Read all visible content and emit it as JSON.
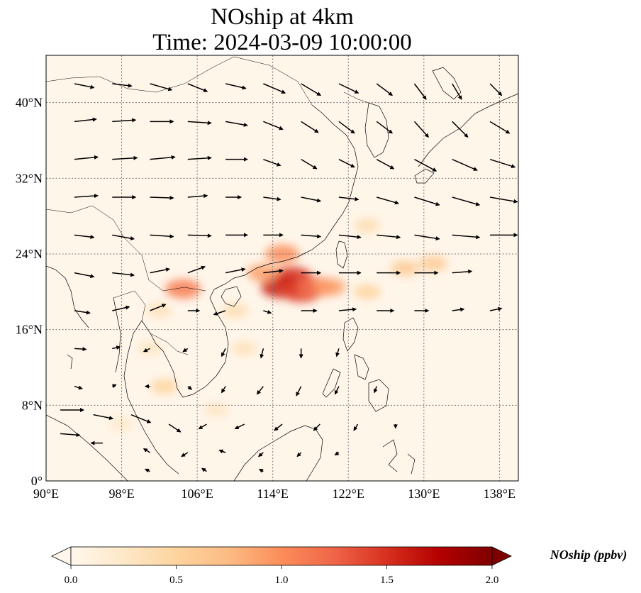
{
  "title": {
    "line1": "NOship at 4km",
    "line2": "Time: 2024-03-09 10:00:00"
  },
  "map": {
    "type": "heatmap",
    "variable": "NOship",
    "lon_range": [
      90,
      140
    ],
    "lat_range": [
      0,
      45
    ],
    "lon_ticks": [
      "90°E",
      "98°E",
      "106°E",
      "114°E",
      "122°E",
      "130°E",
      "138°E"
    ],
    "lon_tick_values": [
      90,
      98,
      106,
      114,
      122,
      130,
      138
    ],
    "lat_ticks": [
      "0°",
      "8°N",
      "16°N",
      "24°N",
      "32°N",
      "40°N"
    ],
    "lat_tick_values": [
      0,
      8,
      16,
      24,
      32,
      40
    ],
    "grid": true,
    "overlay": "wind-vectors",
    "colormap": "OrRd",
    "hotspots": [
      {
        "lon": 116.0,
        "lat": 21.5,
        "value": 1.5
      },
      {
        "lon": 115.0,
        "lat": 20.5,
        "value": 1.6
      },
      {
        "lon": 117.0,
        "lat": 20.0,
        "value": 1.4
      },
      {
        "lon": 118.5,
        "lat": 20.5,
        "value": 1.2
      },
      {
        "lon": 115.0,
        "lat": 24.0,
        "value": 1.0
      },
      {
        "lon": 104.5,
        "lat": 20.3,
        "value": 1.1
      },
      {
        "lon": 113.0,
        "lat": 22.0,
        "value": 0.9
      },
      {
        "lon": 120.0,
        "lat": 20.5,
        "value": 0.9
      },
      {
        "lon": 128.0,
        "lat": 22.5,
        "value": 0.6
      },
      {
        "lon": 131.0,
        "lat": 23.0,
        "value": 0.6
      },
      {
        "lon": 124.0,
        "lat": 20.0,
        "value": 0.5
      },
      {
        "lon": 124.0,
        "lat": 27.0,
        "value": 0.4
      },
      {
        "lon": 110.0,
        "lat": 18.0,
        "value": 0.4
      },
      {
        "lon": 102.0,
        "lat": 18.0,
        "value": 0.35
      },
      {
        "lon": 102.5,
        "lat": 10.0,
        "value": 0.5
      },
      {
        "lon": 111.0,
        "lat": 14.0,
        "value": 0.35
      },
      {
        "lon": 101.0,
        "lat": 14.0,
        "value": 0.3
      },
      {
        "lon": 98.0,
        "lat": 6.0,
        "value": 0.25
      },
      {
        "lon": 108.0,
        "lat": 7.5,
        "value": 0.3
      }
    ],
    "winds": [
      {
        "lon": 93,
        "lat": 42,
        "u": 2.5,
        "v": -0.5
      },
      {
        "lon": 97,
        "lat": 42,
        "u": 2.5,
        "v": -0.3
      },
      {
        "lon": 101,
        "lat": 42,
        "u": 2.8,
        "v": -0.8
      },
      {
        "lon": 105,
        "lat": 42,
        "u": 2.5,
        "v": -1.0
      },
      {
        "lon": 109,
        "lat": 42,
        "u": 2.6,
        "v": -0.6
      },
      {
        "lon": 113,
        "lat": 42,
        "u": 2.8,
        "v": -1.2
      },
      {
        "lon": 117,
        "lat": 42,
        "u": 2.5,
        "v": -1.5
      },
      {
        "lon": 121,
        "lat": 42,
        "u": 2.5,
        "v": -1.2
      },
      {
        "lon": 125,
        "lat": 42,
        "u": 2.0,
        "v": -1.5
      },
      {
        "lon": 129,
        "lat": 42,
        "u": 1.5,
        "v": -2.0
      },
      {
        "lon": 133,
        "lat": 42,
        "u": 1.2,
        "v": -2.0
      },
      {
        "lon": 137,
        "lat": 42,
        "u": 1.5,
        "v": -1.5
      },
      {
        "lon": 93,
        "lat": 38,
        "u": 2.8,
        "v": 0.3
      },
      {
        "lon": 97,
        "lat": 38,
        "u": 3.0,
        "v": 0.2
      },
      {
        "lon": 101,
        "lat": 38,
        "u": 3.0,
        "v": 0.0
      },
      {
        "lon": 105,
        "lat": 38,
        "u": 3.0,
        "v": -0.2
      },
      {
        "lon": 109,
        "lat": 38,
        "u": 2.8,
        "v": -0.5
      },
      {
        "lon": 113,
        "lat": 38,
        "u": 2.5,
        "v": -1.0
      },
      {
        "lon": 117,
        "lat": 38,
        "u": 2.2,
        "v": -1.4
      },
      {
        "lon": 121,
        "lat": 38,
        "u": 2.0,
        "v": -1.5
      },
      {
        "lon": 125,
        "lat": 38,
        "u": 2.0,
        "v": -1.5
      },
      {
        "lon": 129,
        "lat": 38,
        "u": 1.8,
        "v": -2.0
      },
      {
        "lon": 133,
        "lat": 38,
        "u": 2.0,
        "v": -2.0
      },
      {
        "lon": 137,
        "lat": 38,
        "u": 2.5,
        "v": -1.5
      },
      {
        "lon": 93,
        "lat": 34,
        "u": 3.0,
        "v": 0.3
      },
      {
        "lon": 97,
        "lat": 34,
        "u": 3.2,
        "v": 0.2
      },
      {
        "lon": 101,
        "lat": 34,
        "u": 3.2,
        "v": 0.3
      },
      {
        "lon": 105,
        "lat": 34,
        "u": 3.0,
        "v": 0.2
      },
      {
        "lon": 109,
        "lat": 34,
        "u": 2.8,
        "v": 0.0
      },
      {
        "lon": 113,
        "lat": 34,
        "u": 2.2,
        "v": -0.8
      },
      {
        "lon": 117,
        "lat": 34,
        "u": 2.0,
        "v": -1.2
      },
      {
        "lon": 121,
        "lat": 34,
        "u": 2.0,
        "v": -1.0
      },
      {
        "lon": 125,
        "lat": 34,
        "u": 2.2,
        "v": -1.2
      },
      {
        "lon": 129,
        "lat": 34,
        "u": 2.8,
        "v": -1.5
      },
      {
        "lon": 133,
        "lat": 34,
        "u": 3.2,
        "v": -1.4
      },
      {
        "lon": 137,
        "lat": 34,
        "u": 3.2,
        "v": -1.0
      },
      {
        "lon": 93,
        "lat": 30,
        "u": 3.0,
        "v": 0.2
      },
      {
        "lon": 97,
        "lat": 30,
        "u": 3.0,
        "v": 0.0
      },
      {
        "lon": 101,
        "lat": 30,
        "u": 3.0,
        "v": -0.1
      },
      {
        "lon": 105,
        "lat": 30,
        "u": 2.5,
        "v": 0.2
      },
      {
        "lon": 109,
        "lat": 30,
        "u": 2.0,
        "v": 0.0
      },
      {
        "lon": 113,
        "lat": 30,
        "u": 2.2,
        "v": -0.3
      },
      {
        "lon": 117,
        "lat": 30,
        "u": 2.5,
        "v": -0.5
      },
      {
        "lon": 121,
        "lat": 30,
        "u": 2.5,
        "v": -0.3
      },
      {
        "lon": 125,
        "lat": 30,
        "u": 2.8,
        "v": -0.8
      },
      {
        "lon": 129,
        "lat": 30,
        "u": 3.2,
        "v": -1.0
      },
      {
        "lon": 133,
        "lat": 30,
        "u": 3.5,
        "v": -1.0
      },
      {
        "lon": 137,
        "lat": 30,
        "u": 3.5,
        "v": -0.6
      },
      {
        "lon": 93,
        "lat": 26,
        "u": 2.5,
        "v": -0.3
      },
      {
        "lon": 97,
        "lat": 26,
        "u": 2.8,
        "v": -0.5
      },
      {
        "lon": 101,
        "lat": 26,
        "u": 3.0,
        "v": -0.2
      },
      {
        "lon": 105,
        "lat": 26,
        "u": 3.0,
        "v": -0.1
      },
      {
        "lon": 109,
        "lat": 26,
        "u": 2.8,
        "v": 0.0
      },
      {
        "lon": 113,
        "lat": 26,
        "u": 2.5,
        "v": 0.0
      },
      {
        "lon": 117,
        "lat": 26,
        "u": 2.5,
        "v": -0.2
      },
      {
        "lon": 121,
        "lat": 26,
        "u": 2.8,
        "v": -0.3
      },
      {
        "lon": 125,
        "lat": 26,
        "u": 3.0,
        "v": -0.3
      },
      {
        "lon": 129,
        "lat": 26,
        "u": 3.2,
        "v": -0.5
      },
      {
        "lon": 133,
        "lat": 26,
        "u": 3.5,
        "v": -0.3
      },
      {
        "lon": 137,
        "lat": 26,
        "u": 3.5,
        "v": 0.0
      },
      {
        "lon": 93,
        "lat": 22,
        "u": 2.5,
        "v": -0.5
      },
      {
        "lon": 97,
        "lat": 22,
        "u": 2.8,
        "v": -0.3
      },
      {
        "lon": 101,
        "lat": 22,
        "u": 2.5,
        "v": 0.5
      },
      {
        "lon": 105,
        "lat": 22,
        "u": 2.2,
        "v": 0.8
      },
      {
        "lon": 109,
        "lat": 22,
        "u": 2.5,
        "v": 0.5
      },
      {
        "lon": 113,
        "lat": 22,
        "u": 2.5,
        "v": 0.3
      },
      {
        "lon": 117,
        "lat": 22,
        "u": 2.5,
        "v": 0.0
      },
      {
        "lon": 121,
        "lat": 22,
        "u": 2.8,
        "v": 0.0
      },
      {
        "lon": 125,
        "lat": 22,
        "u": 3.0,
        "v": 0.0
      },
      {
        "lon": 129,
        "lat": 22,
        "u": 3.0,
        "v": 0.0
      },
      {
        "lon": 133,
        "lat": 22,
        "u": 2.5,
        "v": 0.2
      },
      {
        "lon": 93,
        "lat": 18,
        "u": 2.0,
        "v": -0.3
      },
      {
        "lon": 97,
        "lat": 18,
        "u": 2.2,
        "v": 0.5
      },
      {
        "lon": 101,
        "lat": 18,
        "u": 2.0,
        "v": 0.8
      },
      {
        "lon": 105,
        "lat": 18,
        "u": 1.5,
        "v": 0.0
      },
      {
        "lon": 109,
        "lat": 18,
        "u": -1.5,
        "v": -0.5
      },
      {
        "lon": 113,
        "lat": 18,
        "u": 1.0,
        "v": -0.3
      },
      {
        "lon": 117,
        "lat": 18,
        "u": 2.0,
        "v": 0.0
      },
      {
        "lon": 121,
        "lat": 18,
        "u": 2.2,
        "v": 0.2
      },
      {
        "lon": 125,
        "lat": 18,
        "u": 2.2,
        "v": 0.0
      },
      {
        "lon": 129,
        "lat": 18,
        "u": 1.8,
        "v": 0.0
      },
      {
        "lon": 133,
        "lat": 18,
        "u": 1.5,
        "v": 0.2
      },
      {
        "lon": 137,
        "lat": 18,
        "u": 1.5,
        "v": 0.3
      },
      {
        "lon": 93,
        "lat": 14,
        "u": 1.5,
        "v": -0.1
      },
      {
        "lon": 97,
        "lat": 14,
        "u": 1.0,
        "v": 0.2
      },
      {
        "lon": 101,
        "lat": 14,
        "u": -0.8,
        "v": -0.4
      },
      {
        "lon": 105,
        "lat": 14,
        "u": -0.6,
        "v": -0.4
      },
      {
        "lon": 109,
        "lat": 14,
        "u": -0.5,
        "v": -1.0
      },
      {
        "lon": 113,
        "lat": 14,
        "u": -0.3,
        "v": -1.2
      },
      {
        "lon": 117,
        "lat": 14,
        "u": 0.0,
        "v": -1.2
      },
      {
        "lon": 121,
        "lat": 14,
        "u": -0.3,
        "v": -1.0
      },
      {
        "lon": 93,
        "lat": 10,
        "u": 1.0,
        "v": -0.3
      },
      {
        "lon": 97,
        "lat": 10,
        "u": 0.5,
        "v": 0.2
      },
      {
        "lon": 101,
        "lat": 10,
        "u": -0.6,
        "v": 0.0
      },
      {
        "lon": 105,
        "lat": 10,
        "u": 0.5,
        "v": -0.4
      },
      {
        "lon": 109,
        "lat": 10,
        "u": -0.5,
        "v": -0.8
      },
      {
        "lon": 113,
        "lat": 10,
        "u": -0.8,
        "v": -1.0
      },
      {
        "lon": 117,
        "lat": 10,
        "u": -0.6,
        "v": -1.2
      },
      {
        "lon": 121,
        "lat": 10,
        "u": -0.5,
        "v": -1.0
      },
      {
        "lon": 125,
        "lat": 10,
        "u": -0.3,
        "v": -0.8
      },
      {
        "lon": 91.5,
        "lat": 7.5,
        "u": 3.0,
        "v": 0.0
      },
      {
        "lon": 95,
        "lat": 7,
        "u": 2.5,
        "v": -0.5
      },
      {
        "lon": 99,
        "lat": 7,
        "u": 2.5,
        "v": -1.0
      },
      {
        "lon": 103,
        "lat": 6,
        "u": 1.5,
        "v": -1.0
      },
      {
        "lon": 107,
        "lat": 6,
        "u": -1.0,
        "v": -0.6
      },
      {
        "lon": 111,
        "lat": 6,
        "u": -1.2,
        "v": -0.6
      },
      {
        "lon": 115,
        "lat": 6,
        "u": -1.0,
        "v": -0.8
      },
      {
        "lon": 119,
        "lat": 6,
        "u": -0.8,
        "v": -0.8
      },
      {
        "lon": 123,
        "lat": 6,
        "u": -0.5,
        "v": -0.8
      },
      {
        "lon": 127,
        "lat": 6,
        "u": 0.0,
        "v": -0.5
      },
      {
        "lon": 91.5,
        "lat": 5,
        "u": 2.5,
        "v": -0.2
      },
      {
        "lon": 96,
        "lat": 4,
        "u": -1.5,
        "v": 0.0
      },
      {
        "lon": 101,
        "lat": 3,
        "u": -0.8,
        "v": 0.5
      },
      {
        "lon": 105,
        "lat": 3,
        "u": -0.8,
        "v": -0.5
      },
      {
        "lon": 109,
        "lat": 3,
        "u": -0.8,
        "v": 0.3
      },
      {
        "lon": 113,
        "lat": 3,
        "u": -0.6,
        "v": -0.5
      },
      {
        "lon": 117,
        "lat": 3,
        "u": -0.5,
        "v": -0.5
      },
      {
        "lon": 121,
        "lat": 3,
        "u": -0.5,
        "v": -0.3
      },
      {
        "lon": 101,
        "lat": 1,
        "u": -0.6,
        "v": 0.3
      },
      {
        "lon": 107,
        "lat": 1,
        "u": -0.6,
        "v": 0.4
      },
      {
        "lon": 113,
        "lat": 1,
        "u": -0.5,
        "v": 0.3
      }
    ]
  },
  "colorbar": {
    "label": "NOship (ppbv)",
    "min": 0.0,
    "max": 2.0,
    "ticks": [
      "0.0",
      "0.5",
      "1.0",
      "1.5",
      "2.0"
    ],
    "tick_values": [
      0.0,
      0.5,
      1.0,
      1.5,
      2.0
    ],
    "extend": "both",
    "colors": [
      "#fff7ec",
      "#fee8c8",
      "#fdd49e",
      "#fdbb84",
      "#fc8d59",
      "#ef6548",
      "#d7301f",
      "#b30000",
      "#7f0000"
    ]
  }
}
